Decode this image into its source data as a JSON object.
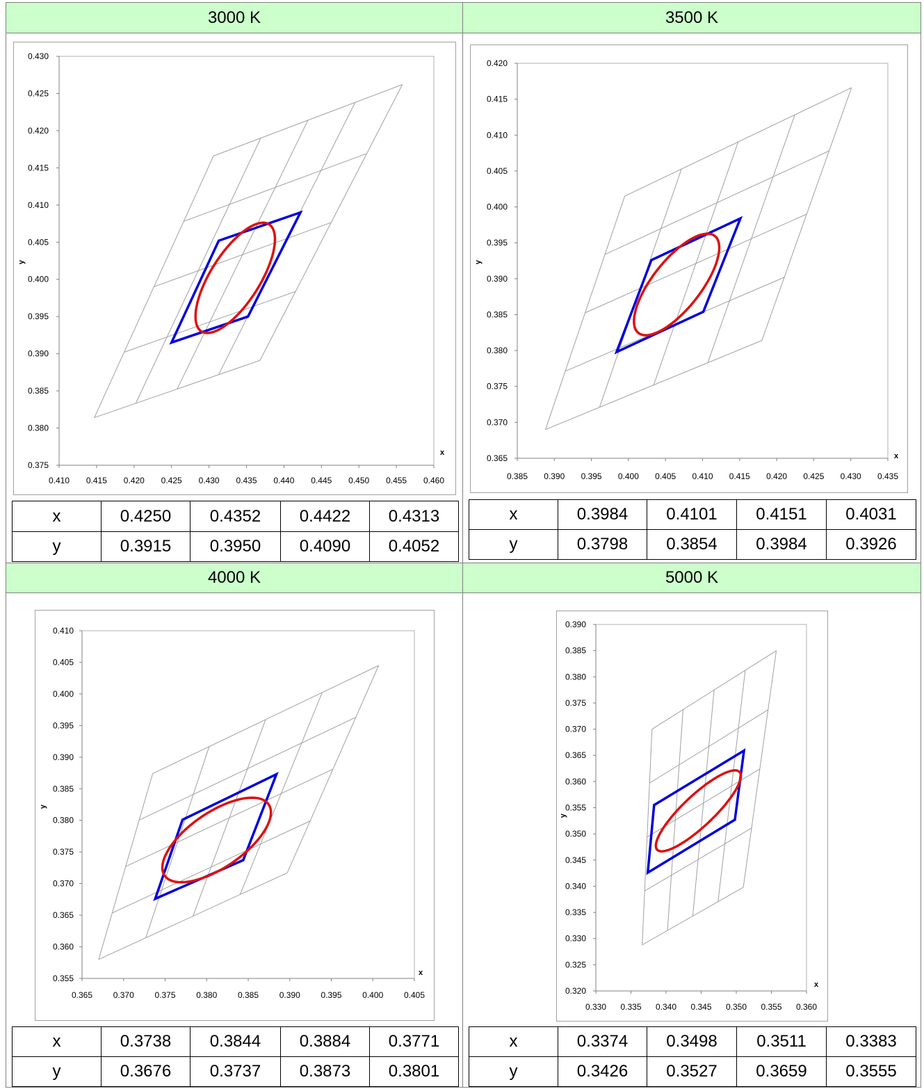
{
  "panels": [
    {
      "title": "3000 K",
      "table": {
        "x_label": "x",
        "y_label": "y",
        "x": [
          "0.4250",
          "0.4352",
          "0.4422",
          "0.4313"
        ],
        "y": [
          "0.3915",
          "0.3950",
          "0.4090",
          "0.4052"
        ]
      }
    },
    {
      "title": "3500 K",
      "table": {
        "x_label": "x",
        "y_label": "y",
        "x": [
          "0.3984",
          "0.4101",
          "0.4151",
          "0.4031"
        ],
        "y": [
          "0.3798",
          "0.3854",
          "0.3984",
          "0.3926"
        ]
      }
    },
    {
      "title": "4000 K",
      "table": {
        "x_label": "x",
        "y_label": "y",
        "x": [
          "0.3738",
          "0.3844",
          "0.3884",
          "0.3771"
        ],
        "y": [
          "0.3676",
          "0.3737",
          "0.3873",
          "0.3801"
        ]
      }
    },
    {
      "title": "5000 K",
      "table": {
        "x_label": "x",
        "y_label": "y",
        "x": [
          "0.3374",
          "0.3498",
          "0.3511",
          "0.3383"
        ],
        "y": [
          "0.3426",
          "0.3527",
          "0.3659",
          "0.3555"
        ]
      }
    }
  ],
  "colors": {
    "header_bg": "#ccffcc",
    "quad": "#0000dd",
    "ellipse": "#dd1111",
    "grid": "#a0a0a0"
  },
  "chart_data": [
    {
      "type": "scatter",
      "title": "",
      "xlabel": "x",
      "ylabel": "y",
      "xlim": [
        0.41,
        0.46
      ],
      "ylim": [
        0.375,
        0.43
      ],
      "xticks": [
        "0.410",
        "0.415",
        "0.420",
        "0.425",
        "0.430",
        "0.435",
        "0.440",
        "0.445",
        "0.450",
        "0.455",
        "0.460"
      ],
      "yticks": [
        "0.375",
        "0.380",
        "0.385",
        "0.390",
        "0.395",
        "0.400",
        "0.405",
        "0.410",
        "0.415",
        "0.420",
        "0.425",
        "0.430"
      ],
      "legend": "none",
      "grid_corners": [
        [
          0.4147,
          0.3814
        ],
        [
          0.4368,
          0.3891
        ],
        [
          0.4558,
          0.4262
        ],
        [
          0.4306,
          0.4166
        ]
      ],
      "quadrangle": [
        [
          0.425,
          0.3915
        ],
        [
          0.4352,
          0.395
        ],
        [
          0.4422,
          0.409
        ],
        [
          0.4313,
          0.4052
        ]
      ],
      "ellipse": {
        "center": [
          0.4335,
          0.4002
        ],
        "semi_major": 0.0085,
        "semi_minor": 0.0033,
        "angle_deg": 58
      }
    },
    {
      "type": "scatter",
      "title": "",
      "xlabel": "x",
      "ylabel": "y",
      "xlim": [
        0.385,
        0.435
      ],
      "ylim": [
        0.365,
        0.42
      ],
      "xticks": [
        "0.385",
        "0.390",
        "0.395",
        "0.400",
        "0.405",
        "0.410",
        "0.415",
        "0.420",
        "0.425",
        "0.430",
        "0.435"
      ],
      "yticks": [
        "0.365",
        "0.370",
        "0.375",
        "0.380",
        "0.385",
        "0.390",
        "0.395",
        "0.400",
        "0.405",
        "0.410",
        "0.415",
        "0.420"
      ],
      "legend": "none",
      "grid_corners": [
        [
          0.3888,
          0.369
        ],
        [
          0.418,
          0.3814
        ],
        [
          0.4301,
          0.4166
        ],
        [
          0.3995,
          0.4015
        ]
      ],
      "quadrangle": [
        [
          0.3984,
          0.3798
        ],
        [
          0.4101,
          0.3854
        ],
        [
          0.4151,
          0.3984
        ],
        [
          0.4031,
          0.3926
        ]
      ],
      "ellipse": {
        "center": [
          0.4065,
          0.3892
        ],
        "semi_major": 0.0085,
        "semi_minor": 0.0033,
        "angle_deg": 53
      }
    },
    {
      "type": "scatter",
      "title": "",
      "xlabel": "x",
      "ylabel": "y",
      "xlim": [
        0.365,
        0.405
      ],
      "ylim": [
        0.355,
        0.41
      ],
      "xticks": [
        "0.365",
        "0.370",
        "0.375",
        "0.380",
        "0.385",
        "0.390",
        "0.395",
        "0.400",
        "0.405"
      ],
      "yticks": [
        "0.355",
        "0.360",
        "0.365",
        "0.370",
        "0.375",
        "0.380",
        "0.385",
        "0.390",
        "0.395",
        "0.400",
        "0.405",
        "0.410"
      ],
      "legend": "none",
      "grid_corners": [
        [
          0.367,
          0.358
        ],
        [
          0.3897,
          0.3717
        ],
        [
          0.4007,
          0.4045
        ],
        [
          0.3735,
          0.3874
        ]
      ],
      "quadrangle": [
        [
          0.3738,
          0.3676
        ],
        [
          0.3844,
          0.3737
        ],
        [
          0.3884,
          0.3873
        ],
        [
          0.3771,
          0.3801
        ]
      ],
      "ellipse": {
        "center": [
          0.3812,
          0.3769
        ],
        "semi_major": 0.0085,
        "semi_minor": 0.0039,
        "angle_deg": 46
      }
    },
    {
      "type": "scatter",
      "title": "",
      "xlabel": "x",
      "ylabel": "y",
      "xlim": [
        0.33,
        0.36
      ],
      "ylim": [
        0.32,
        0.39
      ],
      "xticks": [
        "0.330",
        "0.335",
        "0.340",
        "0.345",
        "0.350",
        "0.355",
        "0.360"
      ],
      "yticks": [
        "0.320",
        "0.325",
        "0.330",
        "0.335",
        "0.340",
        "0.345",
        "0.350",
        "0.355",
        "0.360",
        "0.365",
        "0.370",
        "0.375",
        "0.380",
        "0.385",
        "0.390"
      ],
      "legend": "none",
      "grid_corners": [
        [
          0.3366,
          0.3288
        ],
        [
          0.351,
          0.3398
        ],
        [
          0.3557,
          0.385
        ],
        [
          0.338,
          0.37
        ]
      ],
      "quadrangle": [
        [
          0.3374,
          0.3426
        ],
        [
          0.3498,
          0.3527
        ],
        [
          0.3511,
          0.3659
        ],
        [
          0.3383,
          0.3555
        ]
      ],
      "ellipse": {
        "center": [
          0.3446,
          0.3544
        ],
        "semi_major": 0.0095,
        "semi_minor": 0.0025,
        "angle_deg": 53
      }
    }
  ]
}
